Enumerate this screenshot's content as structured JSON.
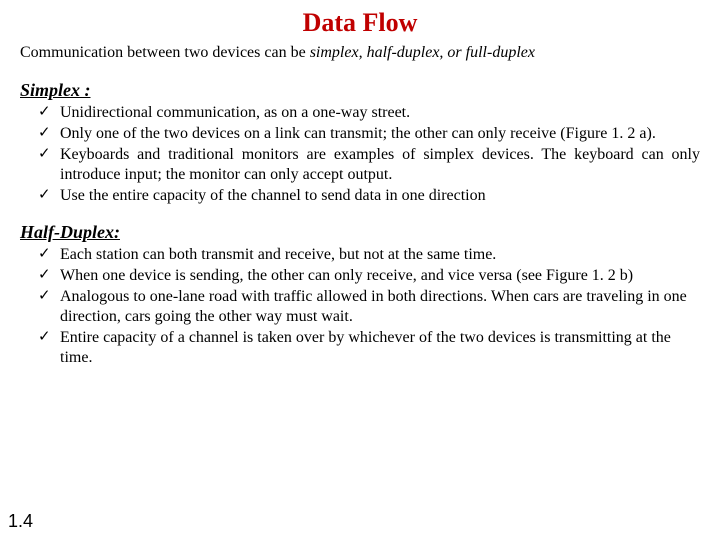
{
  "title": "Data Flow",
  "intro_prefix": "Communication between two devices can be ",
  "intro_modes": "simplex, half-duplex, or full-duplex",
  "simplex": {
    "heading": "Simplex :",
    "items": [
      "Unidirectional communication, as on a one-way street.",
      "Only one of the two devices on a link can transmit; the other can only receive (Figure 1. 2 a).",
      "Keyboards and traditional monitors are examples of simplex devices. The keyboard can only introduce input; the monitor can only accept output.",
      "Use the entire capacity of the channel to send data in one direction"
    ]
  },
  "halfduplex": {
    "heading": "Half-Duplex:",
    "items": [
      "Each station can both transmit and receive, but not at the same time.",
      "When one device is sending, the other can only receive, and vice versa (see Figure 1. 2 b)",
      "Analogous to one-lane road with traffic allowed in both directions. When cars are traveling in one direction, cars going the other way must wait.",
      "Entire capacity of a channel is taken over by whichever of the two devices is transmitting at the time."
    ]
  },
  "page_number": "1.4",
  "colors": {
    "title": "#c00000",
    "text": "#000000",
    "background": "#ffffff"
  }
}
